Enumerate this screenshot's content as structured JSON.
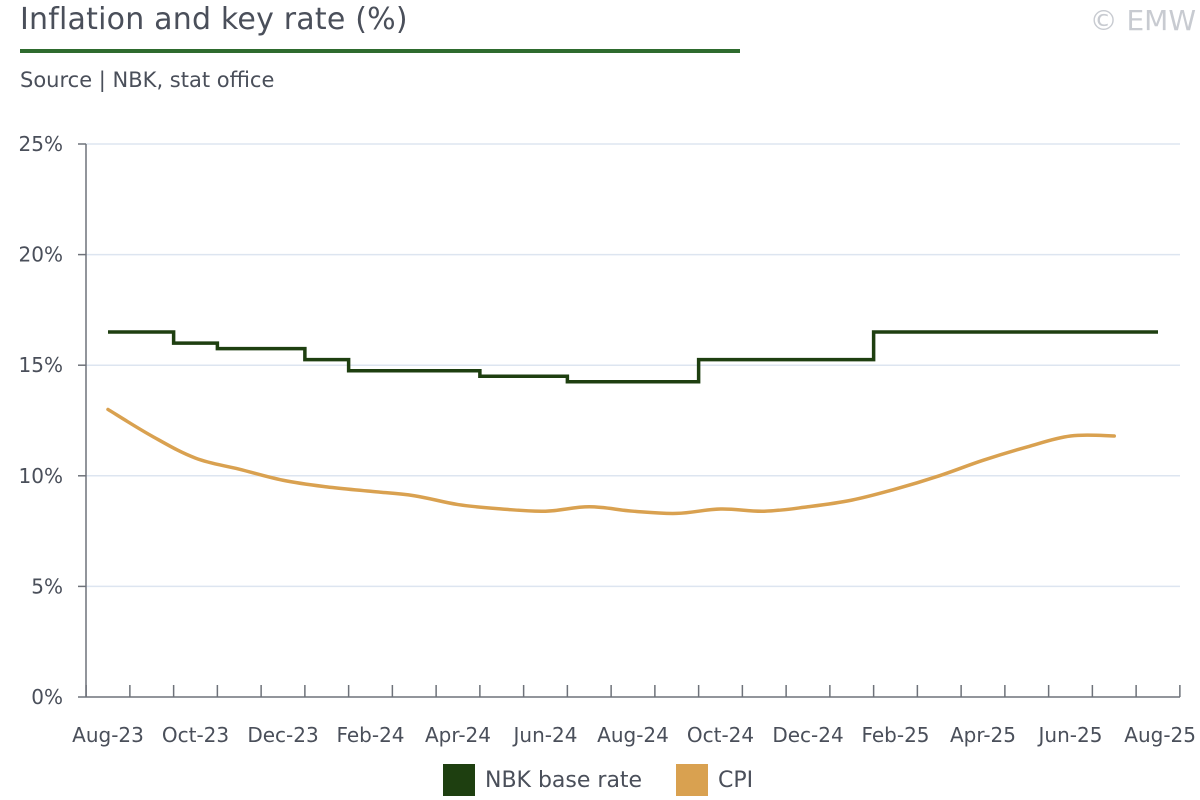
{
  "header": {
    "title": "Inflation and key rate (%)",
    "copyright": "© EMW",
    "source": "Source | NBK, stat office"
  },
  "colors": {
    "rate": "#1e3f10",
    "cpi": "#d9a150",
    "grid": "#dde5f0",
    "axis": "#6e727a",
    "title_rule": "#2e6b2e"
  },
  "chart_data": {
    "type": "line",
    "x": [
      "Aug-23",
      "Sep-23",
      "Oct-23",
      "Nov-23",
      "Dec-23",
      "Jan-24",
      "Feb-24",
      "Mar-24",
      "Apr-24",
      "May-24",
      "Jun-24",
      "Jul-24",
      "Aug-24",
      "Sep-24",
      "Oct-24",
      "Nov-24",
      "Dec-24",
      "Jan-25",
      "Feb-25",
      "Mar-25",
      "Apr-25",
      "May-25",
      "Jun-25",
      "Jul-25",
      "Aug-25"
    ],
    "x_tick_labels": [
      "Aug-23",
      "Oct-23",
      "Dec-23",
      "Feb-24",
      "Apr-24",
      "Jun-24",
      "Aug-24",
      "Oct-24",
      "Dec-24",
      "Feb-25",
      "Apr-25",
      "Jun-25",
      "Aug-25"
    ],
    "y_ticks": [
      "0%",
      "5%",
      "10%",
      "15%",
      "20%",
      "25%"
    ],
    "ylim": [
      0,
      25
    ],
    "grid": true,
    "legend_position": "bottom-center",
    "series": [
      {
        "name": "NBK base rate",
        "style": "step",
        "values": [
          16.5,
          16.5,
          16.0,
          15.75,
          15.75,
          15.25,
          14.75,
          14.75,
          14.75,
          14.5,
          14.5,
          14.25,
          14.25,
          14.25,
          15.25,
          15.25,
          15.25,
          15.25,
          16.5,
          16.5,
          16.5,
          16.5,
          16.5,
          16.5,
          16.5
        ]
      },
      {
        "name": "CPI",
        "style": "line",
        "values": [
          13.0,
          11.8,
          10.8,
          10.3,
          9.8,
          9.5,
          9.3,
          9.1,
          8.7,
          8.5,
          8.4,
          8.6,
          8.4,
          8.3,
          8.5,
          8.4,
          8.6,
          8.9,
          9.4,
          10.0,
          10.7,
          11.3,
          11.8,
          11.8,
          null
        ]
      }
    ]
  }
}
